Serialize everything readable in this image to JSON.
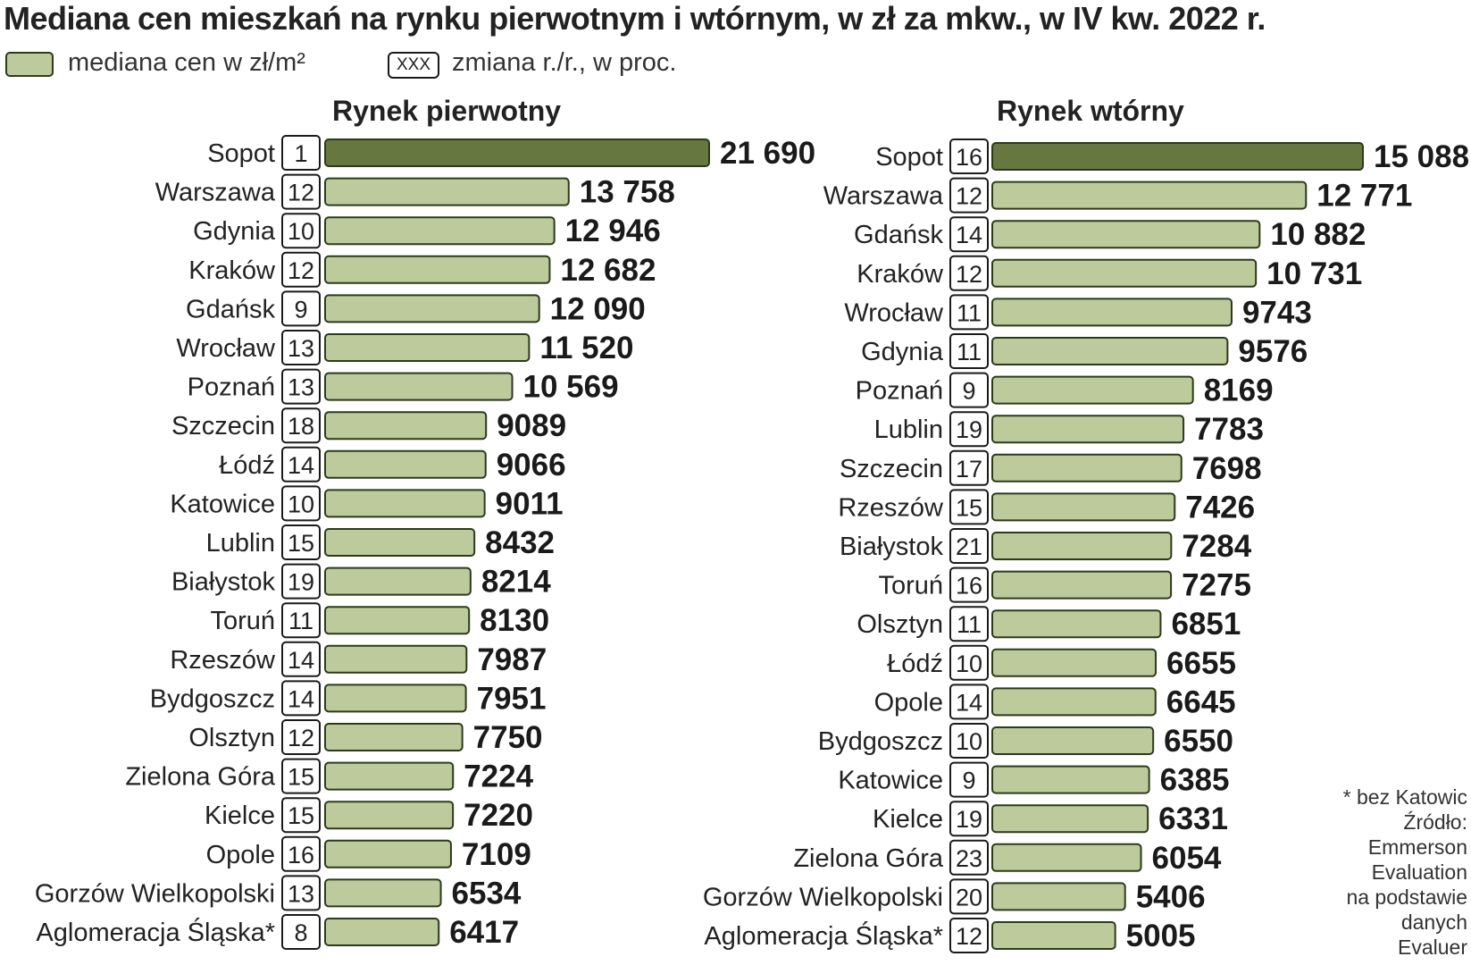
{
  "title": "Mediana cen mieszkań na rynku pierwotnym i wtórnym, w zł za mkw., w IV kw. 2022 r.",
  "legend": {
    "price_label": "mediana cen w zł/m²",
    "change_box": "XXX",
    "change_label": "zmiana r./r., w proc."
  },
  "colors": {
    "bar_top": "#66773f",
    "bar_default": "#bcca9c",
    "bar_border": "#2c3a1c"
  },
  "note": {
    "line1": "* bez Katowic",
    "line2": "Źródło:",
    "line3": "Emmerson",
    "line4": "Evaluation",
    "line5": "na podstawie",
    "line6": "danych",
    "line7": "Evaluer"
  },
  "chart_data": [
    {
      "type": "bar",
      "orientation": "horizontal",
      "title": "Rynek pierwotny",
      "categories": [
        "Sopot",
        "Warszawa",
        "Gdynia",
        "Kraków",
        "Gdańsk",
        "Wrocław",
        "Poznań",
        "Szczecin",
        "Łódź",
        "Katowice",
        "Lublin",
        "Białystok",
        "Toruń",
        "Rzeszów",
        "Bydgoszcz",
        "Olsztyn",
        "Zielona Góra",
        "Kielce",
        "Opole",
        "Gorzów Wielkopolski",
        "Aglomeracja Śląska*"
      ],
      "values": [
        21690,
        13758,
        12946,
        12682,
        12090,
        11520,
        10569,
        9089,
        9066,
        9011,
        8432,
        8214,
        8130,
        7987,
        7951,
        7750,
        7224,
        7220,
        7109,
        6534,
        6417
      ],
      "value_labels": [
        "21 690",
        "13 758",
        "12 946",
        "12 682",
        "12 090",
        "11 520",
        "10 569",
        "9089",
        "9066",
        "9011",
        "8432",
        "8214",
        "8130",
        "7987",
        "7951",
        "7750",
        "7224",
        "7220",
        "7109",
        "6534",
        "6417"
      ],
      "changes": [
        "1",
        "12",
        "10",
        "12",
        "9",
        "13",
        "13",
        "18",
        "14",
        "10",
        "15",
        "19",
        "11",
        "14",
        "14",
        "12",
        "15",
        "15",
        "16",
        "13",
        "8"
      ]
    },
    {
      "type": "bar",
      "orientation": "horizontal",
      "title": "Rynek wtórny",
      "categories": [
        "Sopot",
        "Warszawa",
        "Gdańsk",
        "Kraków",
        "Wrocław",
        "Gdynia",
        "Poznań",
        "Lublin",
        "Szczecin",
        "Rzeszów",
        "Białystok",
        "Toruń",
        "Olsztyn",
        "Łódź",
        "Opole",
        "Bydgoszcz",
        "Katowice",
        "Kielce",
        "Zielona Góra",
        "Gorzów Wielkopolski",
        "Aglomeracja Śląska*"
      ],
      "values": [
        15088,
        12771,
        10882,
        10731,
        9743,
        9576,
        8169,
        7783,
        7698,
        7426,
        7284,
        7275,
        6851,
        6655,
        6645,
        6550,
        6385,
        6331,
        6054,
        5406,
        5005
      ],
      "value_labels": [
        "15 088",
        "12 771",
        "10 882",
        "10 731",
        "9743",
        "9576",
        "8169",
        "7783",
        "7698",
        "7426",
        "7284",
        "7275",
        "6851",
        "6655",
        "6645",
        "6550",
        "6385",
        "6331",
        "6054",
        "5406",
        "5005"
      ],
      "changes": [
        "16",
        "12",
        "14",
        "12",
        "11",
        "11",
        "9",
        "19",
        "17",
        "15",
        "21",
        "16",
        "11",
        "10",
        "14",
        "10",
        "9",
        "19",
        "23",
        "20",
        "12"
      ]
    }
  ]
}
